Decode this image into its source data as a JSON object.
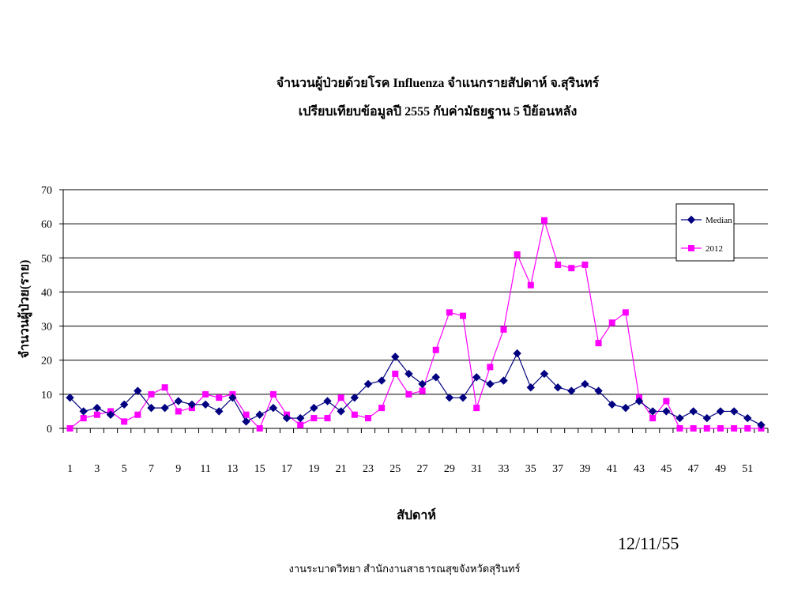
{
  "title_line1": "จำนวนผู้ป่วยด้วยโรค Influenza จำแนกรายสัปดาห์  จ.สุรินทร์",
  "title_line2": "เปรียบเทียบข้อมูลปี 2555 กับค่ามัธยฐาน 5 ปีย้อนหลัง",
  "date_stamp": "12/11/55",
  "footer": "งานระบาดวิทยา สำนักงานสาธารณสุขจังหวัดสุรินทร์",
  "chart_data": {
    "type": "line",
    "xlabel": "สัปดาห์",
    "ylabel": "จำนวนผู้ป่วย(ราย)",
    "ylim": [
      0,
      70
    ],
    "yticks": [
      0,
      10,
      20,
      30,
      40,
      50,
      60,
      70
    ],
    "x": [
      1,
      2,
      3,
      4,
      5,
      6,
      7,
      8,
      9,
      10,
      11,
      12,
      13,
      14,
      15,
      16,
      17,
      18,
      19,
      20,
      21,
      22,
      23,
      24,
      25,
      26,
      27,
      28,
      29,
      30,
      31,
      32,
      33,
      34,
      35,
      36,
      37,
      38,
      39,
      40,
      41,
      42,
      43,
      44,
      45,
      46,
      47,
      48,
      49,
      50,
      51,
      52
    ],
    "xtick_labels": [
      "1",
      "3",
      "5",
      "7",
      "9",
      "11",
      "13",
      "15",
      "17",
      "19",
      "21",
      "23",
      "25",
      "27",
      "29",
      "31",
      "33",
      "35",
      "37",
      "39",
      "41",
      "43",
      "45",
      "47",
      "49",
      "51"
    ],
    "grid": "horizontal",
    "legend_position": "top-right",
    "series": [
      {
        "name": "Median",
        "color": "#000080",
        "marker": "diamond",
        "values": [
          9,
          5,
          6,
          4,
          7,
          11,
          6,
          6,
          8,
          7,
          7,
          5,
          9,
          2,
          4,
          6,
          3,
          3,
          6,
          8,
          5,
          9,
          13,
          14,
          21,
          16,
          13,
          15,
          9,
          9,
          15,
          13,
          14,
          22,
          12,
          16,
          12,
          11,
          13,
          11,
          7,
          6,
          8,
          5,
          5,
          3,
          5,
          3,
          5,
          5,
          3,
          1
        ]
      },
      {
        "name": "2012",
        "color": "#ff00ff",
        "marker": "square",
        "values": [
          0,
          3,
          4,
          5,
          2,
          4,
          10,
          12,
          5,
          6,
          10,
          9,
          10,
          4,
          0,
          10,
          4,
          1,
          3,
          3,
          9,
          4,
          3,
          6,
          16,
          10,
          11,
          23,
          34,
          33,
          6,
          18,
          29,
          51,
          42,
          61,
          48,
          47,
          48,
          25,
          31,
          34,
          9,
          3,
          8,
          0,
          0,
          0,
          0,
          0,
          0,
          0
        ]
      }
    ]
  }
}
